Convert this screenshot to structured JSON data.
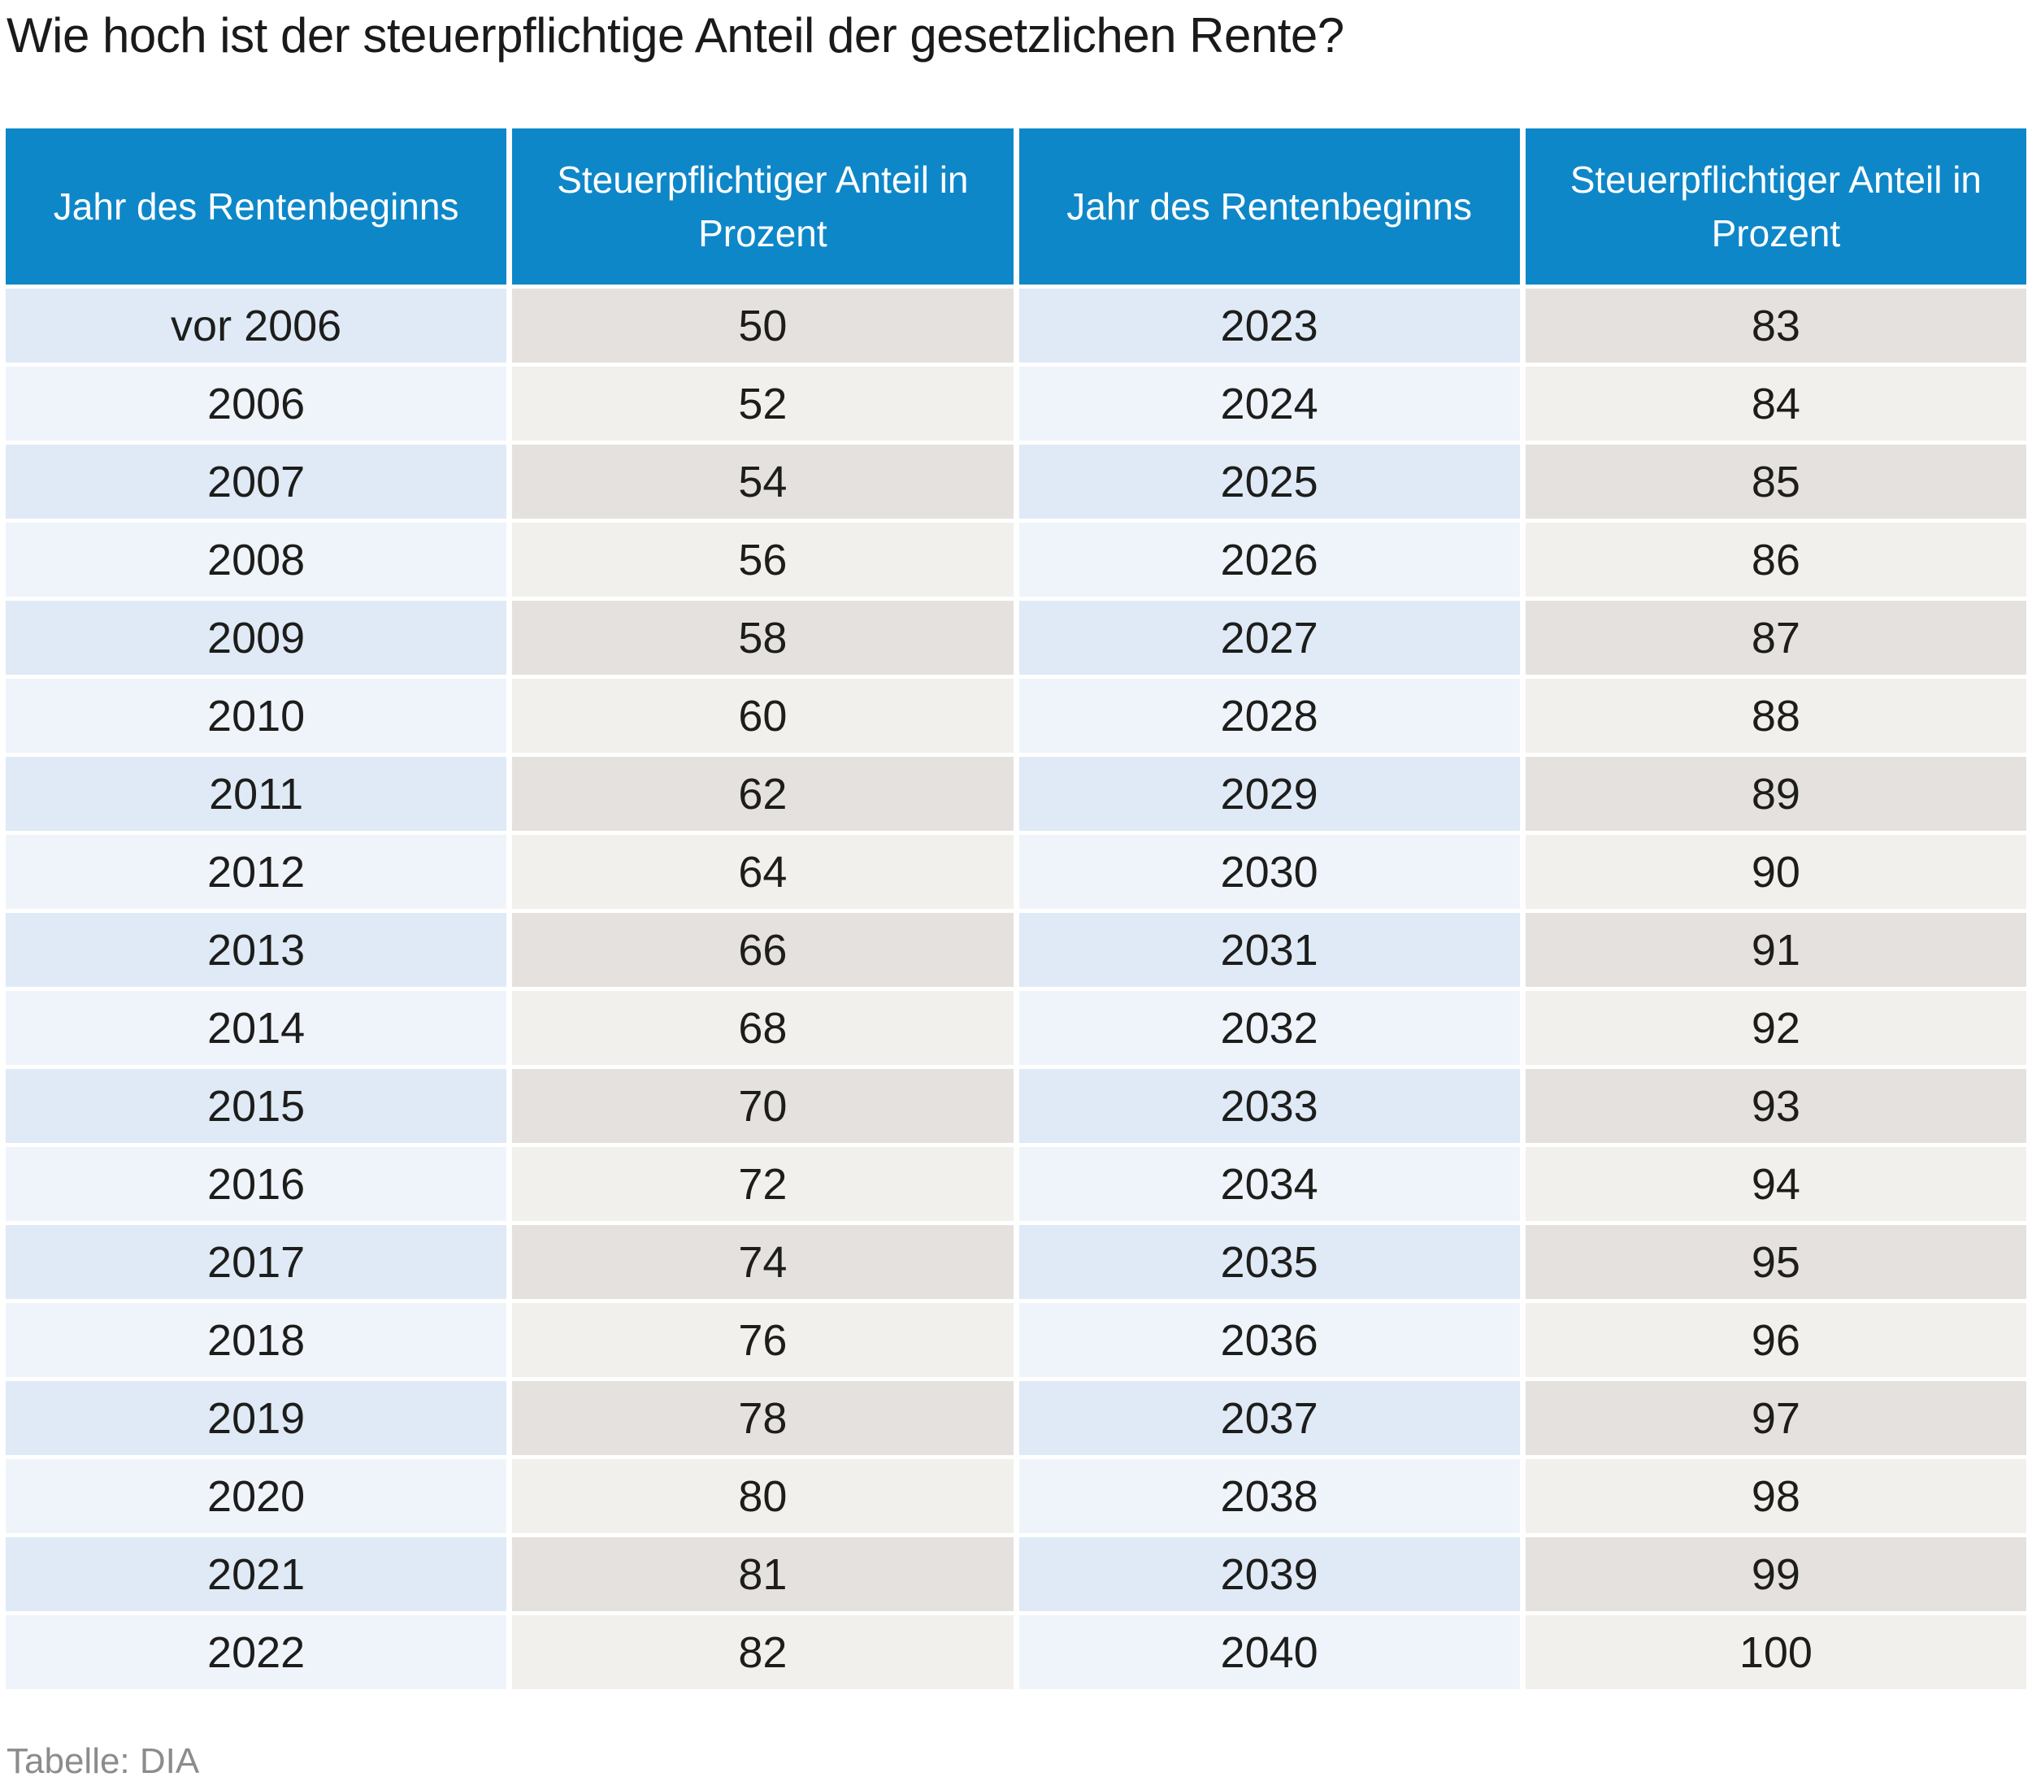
{
  "title": "Wie hoch ist der steuerpflichtige Anteil der gesetzlichen Rente?",
  "source_label": "Tabelle: DIA",
  "colors": {
    "header_bg": "#0e87c9",
    "year_odd": "#dfeaf6",
    "year_even": "#eff4fb",
    "pct_odd": "#e5e1de",
    "pct_even": "#f2f0ed",
    "title_color": "#1a1a1a",
    "cell_color": "#1d1d1b",
    "source_color": "#8c8c8c"
  },
  "chart_data": {
    "type": "table",
    "title": "Wie hoch ist der steuerpflichtige Anteil der gesetzlichen Rente?",
    "columns": [
      "Jahr des Rentenbeginns",
      "Steuerpflichtiger Anteil in Prozent",
      "Jahr des Rentenbeginns",
      "Steuerpflichtiger Anteil in Prozent"
    ],
    "rows": [
      [
        "vor 2006",
        "50",
        "2023",
        "83"
      ],
      [
        "2006",
        "52",
        "2024",
        "84"
      ],
      [
        "2007",
        "54",
        "2025",
        "85"
      ],
      [
        "2008",
        "56",
        "2026",
        "86"
      ],
      [
        "2009",
        "58",
        "2027",
        "87"
      ],
      [
        "2010",
        "60",
        "2028",
        "88"
      ],
      [
        "2011",
        "62",
        "2029",
        "89"
      ],
      [
        "2012",
        "64",
        "2030",
        "90"
      ],
      [
        "2013",
        "66",
        "2031",
        "91"
      ],
      [
        "2014",
        "68",
        "2032",
        "92"
      ],
      [
        "2015",
        "70",
        "2033",
        "93"
      ],
      [
        "2016",
        "72",
        "2034",
        "94"
      ],
      [
        "2017",
        "74",
        "2035",
        "95"
      ],
      [
        "2018",
        "76",
        "2036",
        "96"
      ],
      [
        "2019",
        "78",
        "2037",
        "97"
      ],
      [
        "2020",
        "80",
        "2038",
        "98"
      ],
      [
        "2021",
        "81",
        "2039",
        "99"
      ],
      [
        "2022",
        "82",
        "2040",
        "100"
      ]
    ],
    "source": "Tabelle: DIA",
    "layout": {
      "legend": "none",
      "grid": "off",
      "alternating_row_shading": true
    }
  }
}
